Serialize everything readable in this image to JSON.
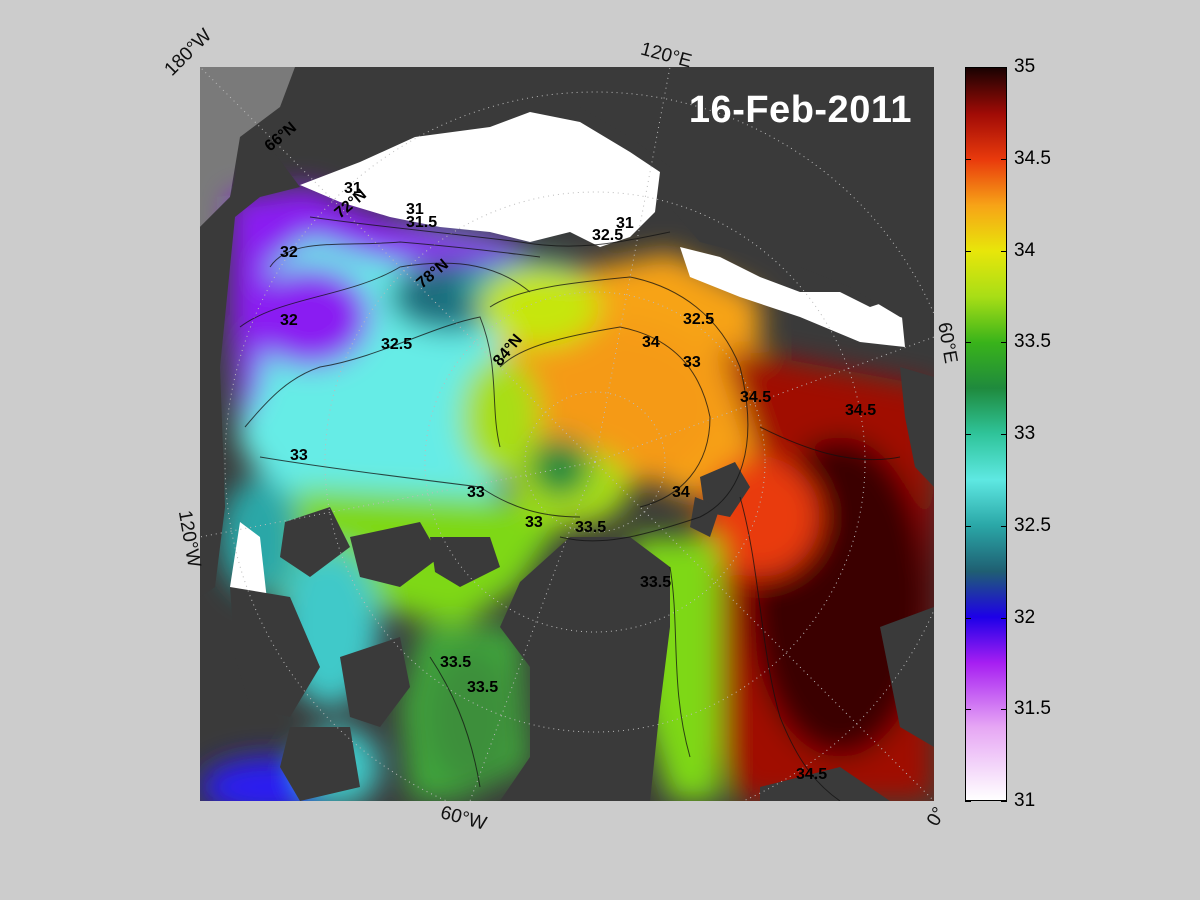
{
  "date": "16-Feb-2011",
  "edge_labels": {
    "lon_180w": "180°W",
    "lon_120e": "120°E",
    "lon_60e": "60°E",
    "lon_120w": "120°W",
    "lon_60w": "60°W",
    "lon_0": "0°"
  },
  "map_labels": {
    "lat_66n": "66°N",
    "lat_72n": "72°N",
    "lat_78n": "78°N",
    "lat_84n": "84°N"
  },
  "colorbar": {
    "min": 31,
    "max": 35,
    "ticks": [
      "35",
      "34.5",
      "34",
      "33.5",
      "33",
      "32.5",
      "32",
      "31.5",
      "31"
    ],
    "stops": [
      {
        "v": 31.0,
        "c": "#ffffff"
      },
      {
        "v": 31.4,
        "c": "#e6a6f4"
      },
      {
        "v": 31.75,
        "c": "#a61ef2"
      },
      {
        "v": 32.0,
        "c": "#1d00e8"
      },
      {
        "v": 32.25,
        "c": "#1f5f72"
      },
      {
        "v": 32.5,
        "c": "#2aa7a7"
      },
      {
        "v": 32.75,
        "c": "#5ee8e2"
      },
      {
        "v": 33.0,
        "c": "#2fc49a"
      },
      {
        "v": 33.25,
        "c": "#1f8a3d"
      },
      {
        "v": 33.5,
        "c": "#39b31a"
      },
      {
        "v": 33.75,
        "c": "#a8de16"
      },
      {
        "v": 34.0,
        "c": "#e8e60a"
      },
      {
        "v": 34.25,
        "c": "#f7a317"
      },
      {
        "v": 34.5,
        "c": "#e93a0c"
      },
      {
        "v": 34.75,
        "c": "#a00b06"
      },
      {
        "v": 35.0,
        "c": "#1a0202"
      }
    ]
  },
  "contour_labels": [
    {
      "text": "31",
      "v": 31
    },
    {
      "text": "31.5",
      "v": 31.5
    },
    {
      "text": "32",
      "v": 32
    },
    {
      "text": "32.5",
      "v": 32.5
    },
    {
      "text": "33",
      "v": 33
    },
    {
      "text": "33.5",
      "v": 33.5
    },
    {
      "text": "34",
      "v": 34
    },
    {
      "text": "34.5",
      "v": 34.5
    }
  ]
}
